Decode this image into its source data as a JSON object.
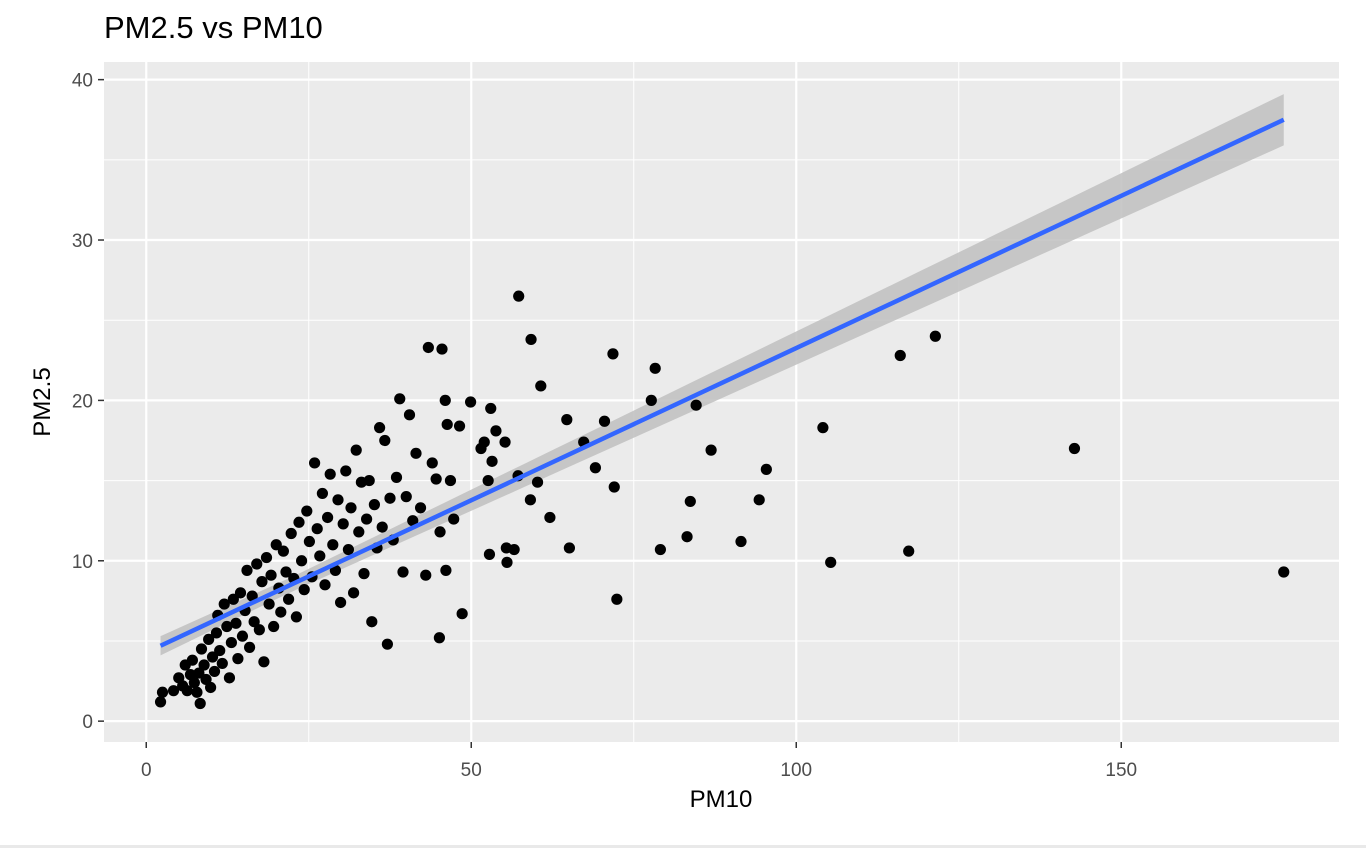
{
  "chart_data": {
    "type": "scatter",
    "title": "PM2.5 vs PM10",
    "xlabel": "PM10",
    "ylabel": "PM2.5",
    "xlim": [
      -6.5,
      183.5
    ],
    "ylim": [
      -1.3,
      41.1
    ],
    "x_ticks": [
      0,
      50,
      100,
      150
    ],
    "y_ticks": [
      0,
      10,
      20,
      30,
      40
    ],
    "x_tick_labels": [
      "0",
      "50",
      "100",
      "150"
    ],
    "y_tick_labels": [
      "0",
      "10",
      "20",
      "30",
      "40"
    ],
    "grid": true,
    "legend": "none",
    "colors": {
      "panel": "#ebebeb",
      "grid": "#ffffff",
      "points": "#000000",
      "trend": "#3366ff",
      "band": "#bfbfbf"
    },
    "trend_line": {
      "method": "linear",
      "x": [
        2.2,
        175
      ],
      "y": [
        4.7,
        37.5
      ],
      "band_halfwidth": [
        0.45,
        1.6
      ]
    },
    "points": [
      [
        2.2,
        1.2
      ],
      [
        2.5,
        1.8
      ],
      [
        4.2,
        1.9
      ],
      [
        5.0,
        2.7
      ],
      [
        5.6,
        2.2
      ],
      [
        6.0,
        3.5
      ],
      [
        6.3,
        1.9
      ],
      [
        6.8,
        2.9
      ],
      [
        7.1,
        3.8
      ],
      [
        7.4,
        2.4
      ],
      [
        7.8,
        1.8
      ],
      [
        8.1,
        3.0
      ],
      [
        8.3,
        1.1
      ],
      [
        8.5,
        4.5
      ],
      [
        8.9,
        3.5
      ],
      [
        9.2,
        2.6
      ],
      [
        9.6,
        5.1
      ],
      [
        9.9,
        2.1
      ],
      [
        10.2,
        4.0
      ],
      [
        10.5,
        3.1
      ],
      [
        10.8,
        5.5
      ],
      [
        11.0,
        6.6
      ],
      [
        11.3,
        4.4
      ],
      [
        11.7,
        3.6
      ],
      [
        12.0,
        7.3
      ],
      [
        12.4,
        5.9
      ],
      [
        12.8,
        2.7
      ],
      [
        13.1,
        4.9
      ],
      [
        13.4,
        7.6
      ],
      [
        13.8,
        6.1
      ],
      [
        14.1,
        3.9
      ],
      [
        14.5,
        8.0
      ],
      [
        14.8,
        5.3
      ],
      [
        15.2,
        6.9
      ],
      [
        15.5,
        9.4
      ],
      [
        15.9,
        4.6
      ],
      [
        16.3,
        7.8
      ],
      [
        16.6,
        6.2
      ],
      [
        17.0,
        9.8
      ],
      [
        17.4,
        5.7
      ],
      [
        17.8,
        8.7
      ],
      [
        18.1,
        3.7
      ],
      [
        18.5,
        10.2
      ],
      [
        18.9,
        7.3
      ],
      [
        19.2,
        9.1
      ],
      [
        19.6,
        5.9
      ],
      [
        20.0,
        11.0
      ],
      [
        20.4,
        8.3
      ],
      [
        20.7,
        6.8
      ],
      [
        21.1,
        10.6
      ],
      [
        21.5,
        9.3
      ],
      [
        21.9,
        7.6
      ],
      [
        22.3,
        11.7
      ],
      [
        22.7,
        8.9
      ],
      [
        23.1,
        6.5
      ],
      [
        23.5,
        12.4
      ],
      [
        23.9,
        10.0
      ],
      [
        24.3,
        8.2
      ],
      [
        24.7,
        13.1
      ],
      [
        25.1,
        11.2
      ],
      [
        25.5,
        9.0
      ],
      [
        25.9,
        16.1
      ],
      [
        26.3,
        12.0
      ],
      [
        26.7,
        10.3
      ],
      [
        27.1,
        14.2
      ],
      [
        27.5,
        8.5
      ],
      [
        27.9,
        12.7
      ],
      [
        28.3,
        15.4
      ],
      [
        28.7,
        11.0
      ],
      [
        29.1,
        9.4
      ],
      [
        29.5,
        13.8
      ],
      [
        29.9,
        7.4
      ],
      [
        30.3,
        12.3
      ],
      [
        30.7,
        15.6
      ],
      [
        31.1,
        10.7
      ],
      [
        31.5,
        13.3
      ],
      [
        31.9,
        8.0
      ],
      [
        32.3,
        16.9
      ],
      [
        32.7,
        11.8
      ],
      [
        33.1,
        14.9
      ],
      [
        33.5,
        9.2
      ],
      [
        33.9,
        12.6
      ],
      [
        34.3,
        15.0
      ],
      [
        34.7,
        6.2
      ],
      [
        35.1,
        13.5
      ],
      [
        35.5,
        10.8
      ],
      [
        35.9,
        18.3
      ],
      [
        36.3,
        12.1
      ],
      [
        36.7,
        17.5
      ],
      [
        37.1,
        4.8
      ],
      [
        37.5,
        13.9
      ],
      [
        38.0,
        11.3
      ],
      [
        38.5,
        15.2
      ],
      [
        39.0,
        20.1
      ],
      [
        39.5,
        9.3
      ],
      [
        40.0,
        14.0
      ],
      [
        40.5,
        19.1
      ],
      [
        41.0,
        12.5
      ],
      [
        41.5,
        16.7
      ],
      [
        42.2,
        13.3
      ],
      [
        43.0,
        9.1
      ],
      [
        43.4,
        23.3
      ],
      [
        44.0,
        16.1
      ],
      [
        44.6,
        15.1
      ],
      [
        45.2,
        11.8
      ],
      [
        45.5,
        23.2
      ],
      [
        46.0,
        20.0
      ],
      [
        46.3,
        18.5
      ],
      [
        46.8,
        15.0
      ],
      [
        47.3,
        12.6
      ],
      [
        48.2,
        18.4
      ],
      [
        48.6,
        6.7
      ],
      [
        45.1,
        5.2
      ],
      [
        46.1,
        9.4
      ],
      [
        49.9,
        19.9
      ],
      [
        51.5,
        17.0
      ],
      [
        52.0,
        17.4
      ],
      [
        52.6,
        15.0
      ],
      [
        53.0,
        19.5
      ],
      [
        53.2,
        16.2
      ],
      [
        53.8,
        18.1
      ],
      [
        52.8,
        10.4
      ],
      [
        55.2,
        17.4
      ],
      [
        55.4,
        10.8
      ],
      [
        55.5,
        9.9
      ],
      [
        56.6,
        10.7
      ],
      [
        57.3,
        26.5
      ],
      [
        57.2,
        15.3
      ],
      [
        59.1,
        13.8
      ],
      [
        59.2,
        23.8
      ],
      [
        60.2,
        14.9
      ],
      [
        60.7,
        20.9
      ],
      [
        62.1,
        12.7
      ],
      [
        64.7,
        18.8
      ],
      [
        65.1,
        10.8
      ],
      [
        67.3,
        17.4
      ],
      [
        69.1,
        15.8
      ],
      [
        70.5,
        18.7
      ],
      [
        71.8,
        22.9
      ],
      [
        72.0,
        14.6
      ],
      [
        72.4,
        7.6
      ],
      [
        77.7,
        20.0
      ],
      [
        78.3,
        22.0
      ],
      [
        79.1,
        10.7
      ],
      [
        83.2,
        11.5
      ],
      [
        83.7,
        13.7
      ],
      [
        84.6,
        19.7
      ],
      [
        86.9,
        16.9
      ],
      [
        91.5,
        11.2
      ],
      [
        94.3,
        13.8
      ],
      [
        95.4,
        15.7
      ],
      [
        104.1,
        18.3
      ],
      [
        105.3,
        9.9
      ],
      [
        116.0,
        22.8
      ],
      [
        117.3,
        10.6
      ],
      [
        121.4,
        24.0
      ],
      [
        142.8,
        17.0
      ],
      [
        175.0,
        9.3
      ]
    ]
  }
}
